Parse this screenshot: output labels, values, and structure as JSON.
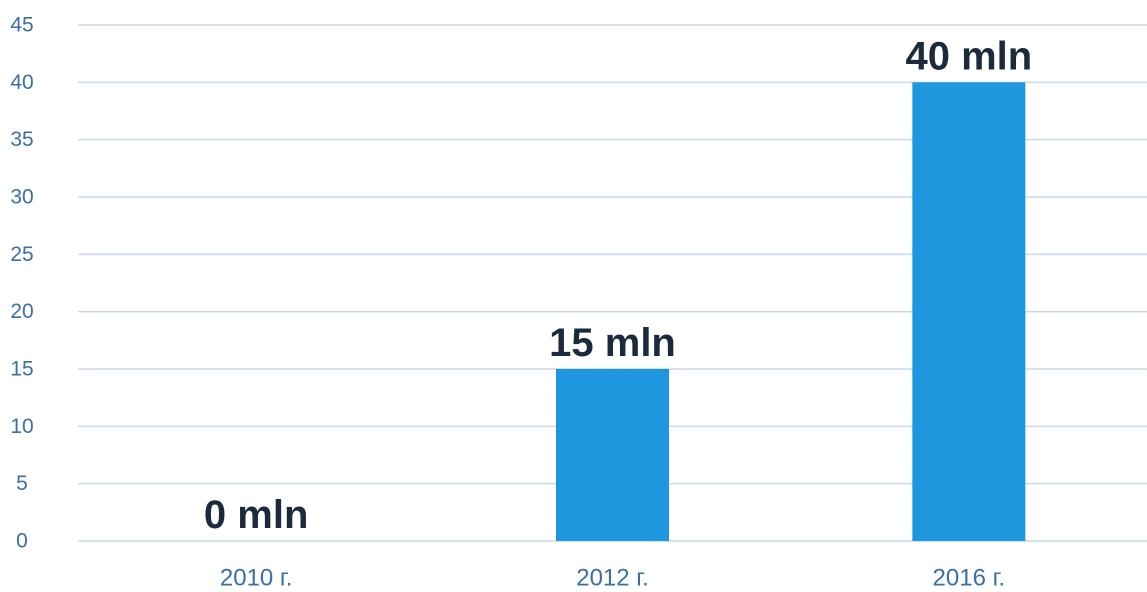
{
  "chart_data": {
    "type": "bar",
    "title": "",
    "xlabel": "",
    "ylabel": "",
    "categories": [
      "2010 г.",
      "2012 г.",
      "2016 г."
    ],
    "values": [
      0,
      15,
      40
    ],
    "data_labels": [
      "0 mln",
      "15 mln",
      "40 mln"
    ],
    "ylim": [
      0,
      45
    ],
    "yticks": [
      0,
      5,
      10,
      15,
      20,
      25,
      30,
      35,
      40,
      45
    ],
    "grid": true,
    "legend": "none",
    "bar_color": "#1f97df"
  }
}
